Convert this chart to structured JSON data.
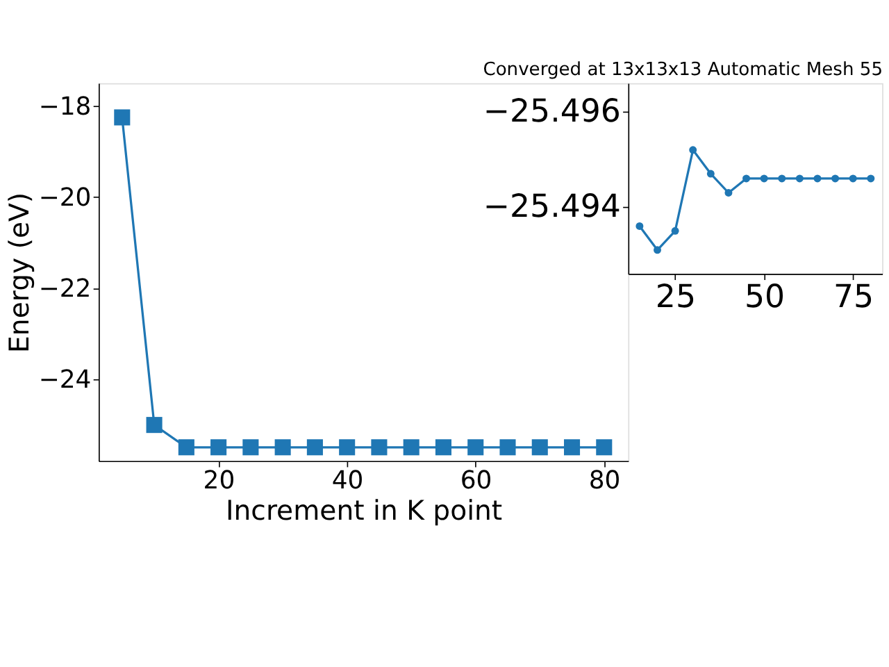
{
  "chart_data": [
    {
      "type": "line",
      "title": "Converged at 13x13x13 Automatic Mesh 55",
      "xlabel": "Increment in K point",
      "ylabel": "Energy (eV)",
      "x": [
        5,
        10,
        15,
        20,
        25,
        30,
        35,
        40,
        45,
        50,
        55,
        60,
        65,
        70,
        75,
        80
      ],
      "series": [
        {
          "color": "#1f77b4",
          "values": [
            -18.25,
            -25.0,
            -25.49,
            -25.49,
            -25.49,
            -25.49,
            -25.49,
            -25.49,
            -25.49,
            -25.49,
            -25.49,
            -25.49,
            -25.49,
            -25.49,
            -25.49,
            -25.49
          ]
        }
      ],
      "xlim": [
        1.35,
        83.75
      ],
      "ylim": [
        -25.79,
        -17.5
      ],
      "xticks": [
        20,
        40,
        60,
        80
      ],
      "yticks": [
        -18,
        -20,
        -22,
        -24
      ],
      "marker": "square",
      "grid": false
    },
    {
      "type": "line",
      "x": [
        15,
        20,
        25,
        30,
        35,
        40,
        45,
        50,
        55,
        60,
        65,
        70,
        75,
        80
      ],
      "series": [
        {
          "color": "#1f77b4",
          "values": [
            -25.4936,
            -25.4931,
            -25.4935,
            -25.4952,
            -25.4947,
            -25.4943,
            -25.4946,
            -25.4946,
            -25.4946,
            -25.4946,
            -25.4946,
            -25.4946,
            -25.4946,
            -25.4946
          ]
        }
      ],
      "xlim": [
        11.8,
        83.2
      ],
      "ylim": [
        -25.4926,
        -25.4966
      ],
      "xticks": [
        25,
        50,
        75
      ],
      "yticks": [
        -25.496,
        -25.494
      ],
      "marker": "circle",
      "grid": false
    }
  ]
}
